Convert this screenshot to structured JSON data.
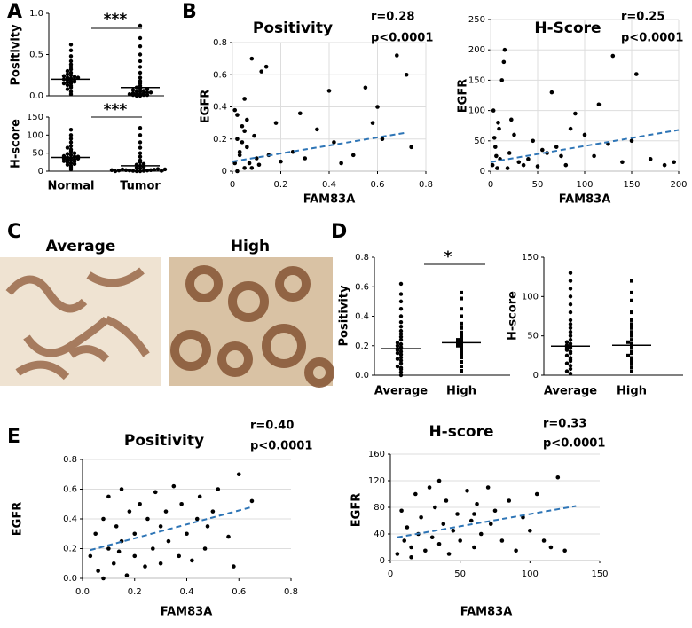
{
  "images": {
    "panel": "C",
    "labels": [
      "Average",
      "High"
    ]
  },
  "chart_data": [
    {
      "type": "strip",
      "panel": "A",
      "ylabel": "Positivity",
      "annotation": "***",
      "ylim": [
        0,
        1
      ],
      "yticks": [
        {
          "value": 0,
          "label": "0.0"
        },
        0.5,
        {
          "value": 1,
          "label": "1.0"
        }
      ],
      "groups": [
        {
          "marker": "circle",
          "median": 0.2,
          "values": [
            0.02,
            0.05,
            0.08,
            0.1,
            0.12,
            0.13,
            0.15,
            0.16,
            0.17,
            0.18,
            0.19,
            0.2,
            0.2,
            0.21,
            0.22,
            0.23,
            0.24,
            0.25,
            0.26,
            0.28,
            0.3,
            0.32,
            0.35,
            0.38,
            0.42,
            0.48,
            0.55,
            0.62,
            0.15,
            0.22
          ]
        },
        {
          "marker": "circle",
          "median": 0.1,
          "values": [
            0,
            0,
            0.01,
            0.01,
            0.02,
            0.02,
            0.03,
            0.03,
            0.04,
            0.05,
            0.05,
            0.06,
            0.07,
            0.08,
            0.09,
            0.1,
            0.12,
            0.15,
            0.18,
            0.22,
            0.28,
            0.35,
            0.42,
            0.5,
            0.6,
            0.7,
            0.85,
            0.02,
            0.04,
            0.01
          ]
        }
      ]
    },
    {
      "type": "strip",
      "ylabel": "H-score",
      "annotation": "***",
      "categories": [
        "Normal",
        "Tumor"
      ],
      "ylim": [
        0,
        150
      ],
      "yticks": [
        0,
        50,
        100,
        150
      ],
      "groups": [
        {
          "marker": "circle",
          "median": 38,
          "values": [
            5,
            10,
            15,
            18,
            20,
            22,
            25,
            27,
            28,
            30,
            32,
            33,
            35,
            36,
            38,
            40,
            42,
            45,
            48,
            50,
            55,
            60,
            65,
            70,
            80,
            90,
            100,
            115,
            35,
            40
          ]
        },
        {
          "marker": "circle",
          "median": 15,
          "values": [
            0,
            0,
            1,
            1,
            2,
            2,
            3,
            3,
            4,
            5,
            6,
            8,
            10,
            12,
            15,
            18,
            20,
            25,
            30,
            40,
            50,
            65,
            80,
            100,
            120,
            2,
            1,
            0,
            5,
            3
          ]
        }
      ]
    },
    {
      "type": "scatter",
      "panel": "B",
      "title": "Positivity",
      "annotations": [
        "r=0.28",
        "p<0.0001"
      ],
      "xlabel": "FAM83A",
      "ylabel": "EGFR",
      "grid": "both",
      "xlim": [
        0,
        0.8
      ],
      "xticks": [
        0,
        0.2,
        0.4,
        0.6,
        0.8
      ],
      "ylim": [
        0,
        0.8
      ],
      "yticks": [
        0,
        0.2,
        0.4,
        0.6,
        0.8
      ],
      "x": [
        0.01,
        0.02,
        0.02,
        0.03,
        0.04,
        0.05,
        0.06,
        0.08,
        0.1,
        0.12,
        0.01,
        0.03,
        0.05,
        0.07,
        0.15,
        0.18,
        0.2,
        0.25,
        0.3,
        0.02,
        0.04,
        0.06,
        0.09,
        0.11,
        0.14,
        0.35,
        0.4,
        0.45,
        0.5,
        0.55,
        0.6,
        0.62,
        0.68,
        0.72,
        0.74,
        0.05,
        0.08,
        0.28,
        0.42,
        0.58
      ],
      "y": [
        0.05,
        0.2,
        0.35,
        0.1,
        0.28,
        0.02,
        0.15,
        0.7,
        0.08,
        0.62,
        0.38,
        0.12,
        0.25,
        0.05,
        0.1,
        0.3,
        0.06,
        0.12,
        0.08,
        0.0,
        0.18,
        0.32,
        0.22,
        0.04,
        0.65,
        0.26,
        0.5,
        0.05,
        0.1,
        0.52,
        0.4,
        0.2,
        0.72,
        0.6,
        0.15,
        0.45,
        0.02,
        0.36,
        0.18,
        0.3
      ],
      "trend": {
        "color": "#2e75b6",
        "x": [
          0,
          0.72
        ],
        "y": [
          0.06,
          0.24
        ]
      }
    },
    {
      "type": "scatter",
      "title": "H-Score",
      "annotations": [
        "r=0.25",
        "p<0.0001"
      ],
      "xlabel": "FAM83A",
      "ylabel": "EGFR",
      "grid": "both",
      "xlim": [
        0,
        200
      ],
      "xticks": [
        0,
        50,
        100,
        150,
        200
      ],
      "ylim": [
        0,
        250
      ],
      "yticks": [
        0,
        50,
        100,
        150,
        200,
        250
      ],
      "x": [
        2,
        5,
        8,
        10,
        12,
        15,
        18,
        20,
        25,
        30,
        3,
        6,
        9,
        14,
        35,
        40,
        45,
        50,
        60,
        65,
        70,
        75,
        80,
        90,
        100,
        110,
        115,
        125,
        130,
        140,
        150,
        155,
        170,
        185,
        195,
        4,
        7,
        22,
        55,
        85
      ],
      "y": [
        10,
        40,
        80,
        20,
        150,
        200,
        5,
        30,
        60,
        15,
        100,
        25,
        70,
        180,
        10,
        20,
        50,
        8,
        30,
        130,
        40,
        25,
        10,
        95,
        60,
        25,
        110,
        45,
        190,
        15,
        50,
        160,
        20,
        10,
        15,
        55,
        5,
        85,
        35,
        70
      ],
      "trend": {
        "color": "#2e75b6",
        "x": [
          0,
          200
        ],
        "y": [
          15,
          68
        ]
      }
    },
    {
      "type": "strip",
      "panel": "D",
      "ylabel": "Positivity",
      "annotation": "*",
      "categories": [
        "Average",
        "High"
      ],
      "ylim": [
        0,
        0.8
      ],
      "yticks": [
        {
          "value": 0,
          "label": "0.0"
        },
        0.2,
        0.4,
        0.6,
        0.8
      ],
      "groups": [
        {
          "marker": "circle",
          "median": 0.18,
          "values": [
            0.0,
            0.02,
            0.04,
            0.05,
            0.06,
            0.08,
            0.1,
            0.11,
            0.12,
            0.14,
            0.15,
            0.16,
            0.17,
            0.18,
            0.19,
            0.2,
            0.21,
            0.22,
            0.24,
            0.26,
            0.28,
            0.3,
            0.33,
            0.36,
            0.4,
            0.45,
            0.5,
            0.55,
            0.62,
            0.18
          ]
        },
        {
          "marker": "square",
          "median": 0.22,
          "values": [
            0.03,
            0.06,
            0.09,
            0.12,
            0.14,
            0.16,
            0.18,
            0.2,
            0.21,
            0.22,
            0.23,
            0.25,
            0.27,
            0.29,
            0.32,
            0.35,
            0.4,
            0.45,
            0.52,
            0.56,
            0.2,
            0.24
          ]
        }
      ]
    },
    {
      "type": "strip",
      "ylabel": "H-score",
      "categories": [
        "Average",
        "High"
      ],
      "ylim": [
        0,
        150
      ],
      "yticks": [
        0,
        50,
        100,
        150
      ],
      "groups": [
        {
          "marker": "circle",
          "median": 37,
          "values": [
            2,
            5,
            8,
            12,
            15,
            18,
            20,
            22,
            25,
            28,
            30,
            32,
            35,
            37,
            40,
            42,
            45,
            50,
            55,
            60,
            65,
            70,
            80,
            90,
            100,
            110,
            120,
            130,
            35,
            38
          ]
        },
        {
          "marker": "square",
          "median": 38,
          "values": [
            5,
            10,
            15,
            18,
            22,
            25,
            28,
            30,
            35,
            38,
            40,
            42,
            45,
            50,
            55,
            60,
            65,
            70,
            80,
            95,
            105,
            120
          ]
        }
      ]
    },
    {
      "type": "scatter",
      "panel": "E",
      "title": "Positivity",
      "annotations": [
        "r=0.40",
        "p<0.0001"
      ],
      "xlabel": "FAM83A",
      "ylabel": "EGFR",
      "grid": "y",
      "xlim": [
        0,
        0.8
      ],
      "xticks": [
        {
          "value": 0,
          "label": "0.0"
        },
        0.2,
        0.4,
        0.6,
        0.8
      ],
      "ylim": [
        0,
        0.8
      ],
      "yticks": [
        {
          "value": 0,
          "label": "0.0"
        },
        0.2,
        0.4,
        0.6,
        0.8
      ],
      "x": [
        0.03,
        0.05,
        0.06,
        0.08,
        0.1,
        0.1,
        0.12,
        0.13,
        0.15,
        0.15,
        0.17,
        0.18,
        0.2,
        0.2,
        0.22,
        0.24,
        0.25,
        0.27,
        0.28,
        0.3,
        0.3,
        0.32,
        0.33,
        0.35,
        0.37,
        0.38,
        0.4,
        0.42,
        0.44,
        0.45,
        0.47,
        0.48,
        0.5,
        0.52,
        0.56,
        0.58,
        0.6,
        0.65,
        0.08,
        0.14
      ],
      "y": [
        0.15,
        0.3,
        0.05,
        0.4,
        0.2,
        0.55,
        0.1,
        0.35,
        0.25,
        0.6,
        0.02,
        0.45,
        0.15,
        0.3,
        0.5,
        0.08,
        0.4,
        0.2,
        0.58,
        0.1,
        0.35,
        0.45,
        0.25,
        0.62,
        0.15,
        0.5,
        0.3,
        0.12,
        0.4,
        0.55,
        0.2,
        0.35,
        0.45,
        0.6,
        0.28,
        0.08,
        0.7,
        0.52,
        0.0,
        0.18
      ],
      "trend": {
        "color": "#2e75b6",
        "x": [
          0.03,
          0.65
        ],
        "y": [
          0.19,
          0.48
        ]
      }
    },
    {
      "type": "scatter",
      "title": "H-score",
      "annotations": [
        "r=0.33",
        "p<0.0001"
      ],
      "xlabel": "FAM83A",
      "ylabel": "EGFR",
      "grid": "y",
      "xlim": [
        0,
        150
      ],
      "xticks": [
        0,
        50,
        100,
        150
      ],
      "ylim": [
        0,
        160
      ],
      "yticks": [
        0,
        40,
        80,
        120,
        160
      ],
      "x": [
        5,
        8,
        10,
        12,
        15,
        18,
        20,
        22,
        25,
        28,
        30,
        32,
        35,
        38,
        40,
        42,
        45,
        48,
        50,
        55,
        58,
        60,
        62,
        65,
        70,
        72,
        75,
        80,
        85,
        90,
        95,
        100,
        105,
        110,
        115,
        120,
        125,
        15,
        35,
        60
      ],
      "y": [
        10,
        75,
        30,
        50,
        20,
        100,
        40,
        65,
        15,
        110,
        35,
        80,
        25,
        55,
        90,
        10,
        45,
        70,
        30,
        105,
        60,
        20,
        85,
        40,
        110,
        55,
        75,
        30,
        90,
        15,
        65,
        45,
        100,
        30,
        20,
        125,
        15,
        5,
        120,
        70
      ],
      "trend": {
        "color": "#2e75b6",
        "x": [
          5,
          133
        ],
        "y": [
          35,
          82
        ]
      }
    }
  ]
}
